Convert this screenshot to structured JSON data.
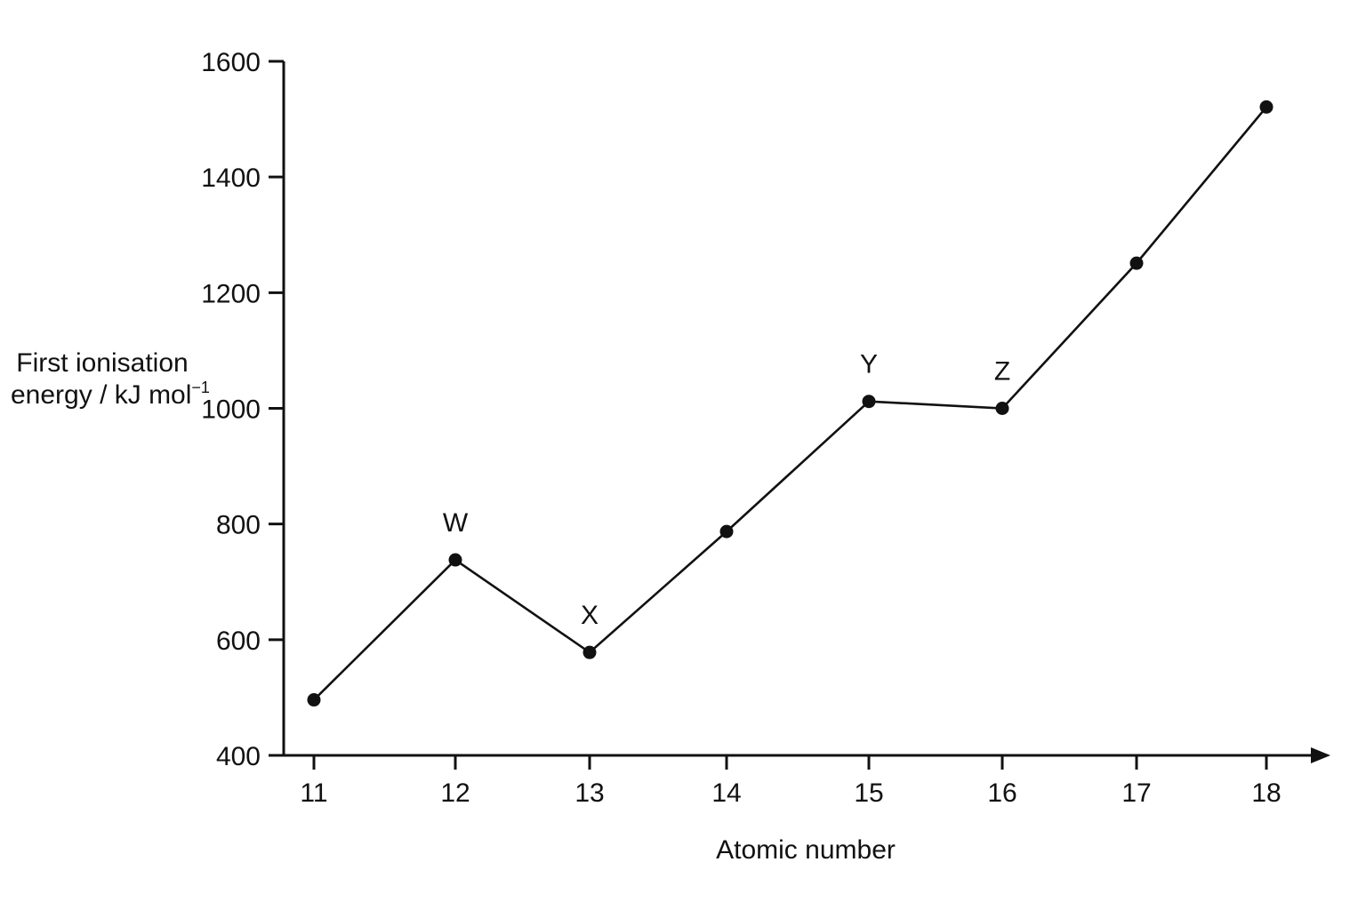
{
  "chart_data": {
    "type": "line",
    "xlabel": "Atomic number",
    "ylabel": {
      "line1": "First ionisation",
      "line2": "energy / kJ mol",
      "unit_exponent": "−1"
    },
    "x": [
      11,
      12,
      13,
      14,
      15,
      16,
      17,
      18
    ],
    "x_tick_labels": [
      "11",
      "12",
      "13",
      "14",
      "15",
      "16",
      "17",
      "18"
    ],
    "y_tick_labels": [
      "400",
      "600",
      "800",
      "1000",
      "1200",
      "1400",
      "1600"
    ],
    "y_ticks": [
      400,
      600,
      800,
      1000,
      1200,
      1400,
      1600
    ],
    "ylim": [
      400,
      1600
    ],
    "grid": false,
    "series": [
      {
        "values": [
          496,
          738,
          578,
          787,
          1012,
          1000,
          1251,
          1521
        ]
      }
    ],
    "point_labels": [
      {
        "x": 12,
        "text": "W"
      },
      {
        "x": 13,
        "text": "X"
      },
      {
        "x": 15,
        "text": "Y"
      },
      {
        "x": 16,
        "text": "Z"
      }
    ]
  }
}
